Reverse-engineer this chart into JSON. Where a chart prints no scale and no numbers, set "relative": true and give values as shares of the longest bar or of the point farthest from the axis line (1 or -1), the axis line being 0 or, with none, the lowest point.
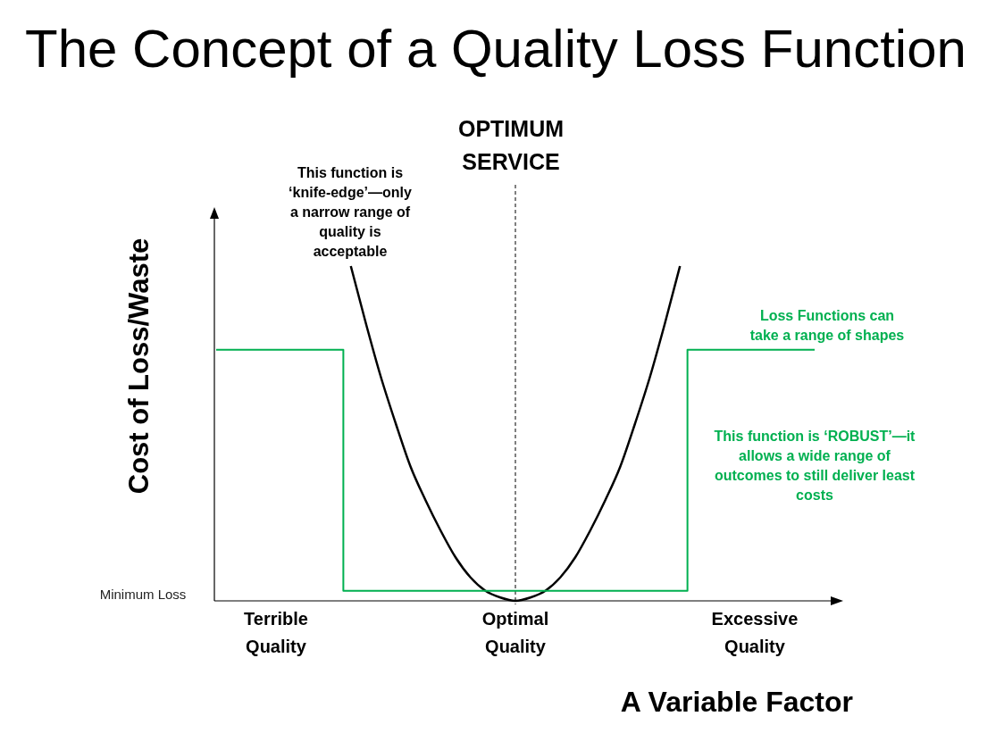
{
  "chart_data": {
    "type": "line",
    "title": "The Concept of a Quality Loss Function",
    "xlabel": "A Variable Factor",
    "ylabel": "Cost of Loss/Waste",
    "relative": true,
    "categories": [
      null,
      null,
      null,
      null,
      "Terrible Quality",
      null,
      null,
      null,
      null,
      null,
      null,
      null,
      null,
      null,
      null,
      null,
      null,
      null,
      null,
      null,
      "Optimal Quality",
      null,
      null,
      null,
      null,
      null,
      null,
      null,
      null,
      null,
      null,
      null,
      null,
      null,
      null,
      null,
      "Excessive Quality",
      null,
      null,
      null,
      null
    ],
    "series": [
      {
        "type": "line",
        "color": "#000000",
        "values": [
          null,
          null,
          null,
          null,
          null,
          null,
          null,
          null,
          null,
          1,
          0.83,
          0.67,
          0.53,
          0.4,
          0.3,
          0.21,
          0.13,
          0.07,
          0.03,
          0.01,
          0,
          0.01,
          0.03,
          0.07,
          0.13,
          0.21,
          0.3,
          0.4,
          0.53,
          0.67,
          0.83,
          1,
          null,
          null,
          null,
          null,
          null,
          null,
          null,
          null,
          null
        ]
      },
      {
        "type": "step",
        "color": "#00b050",
        "values": [
          0.75,
          0.75,
          0.75,
          0.75,
          0.75,
          0.75,
          0.75,
          0.75,
          0.75,
          0.03,
          0.03,
          0.03,
          0.03,
          0.03,
          0.03,
          0.03,
          0.03,
          0.03,
          0.03,
          0.03,
          0.03,
          0.03,
          0.03,
          0.03,
          0.03,
          0.03,
          0.03,
          0.03,
          0.03,
          0.03,
          0.03,
          0.03,
          0.75,
          0.75,
          0.75,
          0.75,
          0.75,
          0.75,
          0.75,
          0.75,
          0.75
        ]
      }
    ],
    "ref_lines": [
      {
        "axis": "x",
        "value": "Optimal Quality",
        "label": "OPTIMUM SERVICE",
        "line_style": "dashed",
        "color": "#000000"
      }
    ],
    "annotations": [
      "This function is ‘knife-edge’—only a narrow range of quality is acceptable",
      "Loss Functions can take a range of shapes",
      "This function is ‘ROBUST’—it allows a wide range of outcomes to still deliver least costs",
      "Minimum Loss"
    ],
    "line_style": "solid"
  }
}
